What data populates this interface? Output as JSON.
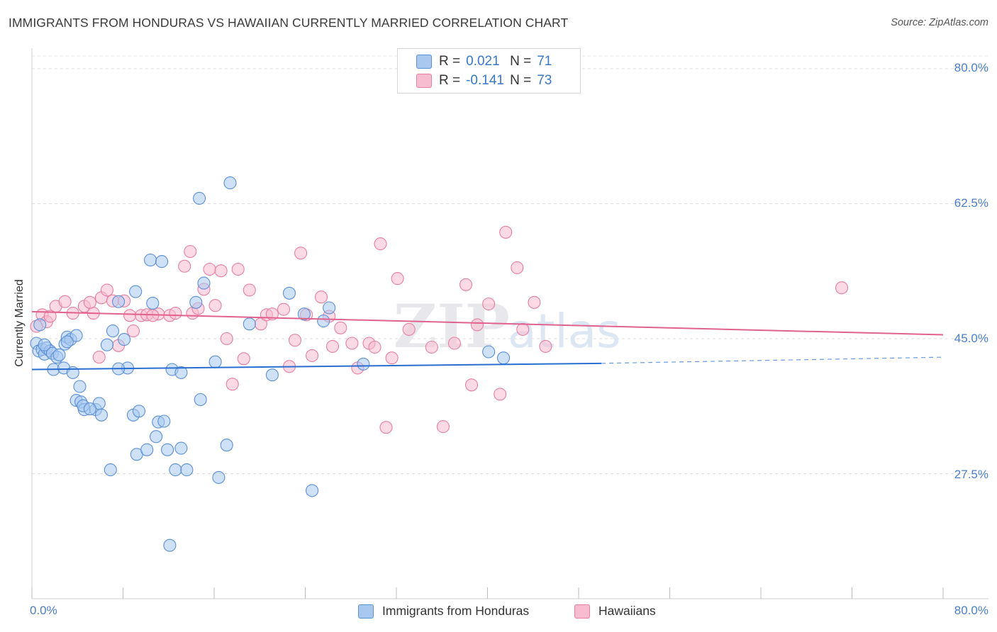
{
  "chart_data": {
    "type": "scatter",
    "title": "IMMIGRANTS FROM HONDURAS VS HAWAIIAN CURRENTLY MARRIED CORRELATION CHART",
    "source": "Source: ZipAtlas.com",
    "ylabel": "Currently Married",
    "xlim": [
      0,
      80
    ],
    "ylim": [
      10,
      82
    ],
    "y_ticks": [
      "80.0%",
      "62.5%",
      "45.0%",
      "27.5%"
    ],
    "y_tick_values": [
      80,
      62.5,
      45,
      27.5
    ],
    "x_tick_labels": [
      "0.0%",
      "80.0%"
    ],
    "watermark": {
      "zip": "ZIP",
      "atlas": "atlas"
    },
    "legend": {
      "r_label": "R =",
      "n_label": "N =",
      "rows": [
        {
          "name": "Immigrants from Honduras",
          "r": "0.021",
          "n": "71"
        },
        {
          "name": "Hawaiians",
          "r": "-0.141",
          "n": "73"
        }
      ]
    },
    "colors": {
      "blue_fill": "#a8c8f0",
      "blue_stroke": "#5b8fd6",
      "blue_line": "#2a6fd0",
      "pink_fill": "#f7bcd0",
      "pink_stroke": "#e67fa2",
      "pink_line": "#e0628d",
      "tick_text": "#4a7fc8"
    },
    "series": [
      {
        "name": "Immigrants from Honduras",
        "trend": {
          "x0": 0,
          "y0": 41.0,
          "x1": 50,
          "y1": 41.8,
          "dash_x1": 80,
          "dash_y1": 42.6
        },
        "points": [
          [
            0.4,
            44.4
          ],
          [
            0.6,
            43.4
          ],
          [
            0.9,
            43.6
          ],
          [
            1.1,
            43.0
          ],
          [
            1.3,
            43.8
          ],
          [
            1.6,
            43.4
          ],
          [
            1.8,
            43.1
          ],
          [
            1.1,
            44.2
          ],
          [
            1.9,
            41.0
          ],
          [
            2.2,
            42.6
          ],
          [
            2.4,
            42.9
          ],
          [
            2.9,
            44.3
          ],
          [
            3.1,
            45.2
          ],
          [
            3.4,
            44.9
          ],
          [
            3.9,
            45.4
          ],
          [
            2.8,
            41.2
          ],
          [
            3.6,
            40.6
          ],
          [
            4.2,
            38.8
          ],
          [
            3.9,
            37.0
          ],
          [
            4.3,
            36.8
          ],
          [
            4.6,
            35.8
          ],
          [
            4.5,
            36.3
          ],
          [
            5.6,
            35.8
          ],
          [
            5.9,
            36.6
          ],
          [
            6.1,
            35.1
          ],
          [
            5.1,
            35.9
          ],
          [
            6.6,
            44.2
          ],
          [
            7.1,
            46.0
          ],
          [
            7.6,
            49.8
          ],
          [
            8.1,
            44.9
          ],
          [
            8.4,
            41.2
          ],
          [
            8.9,
            35.1
          ],
          [
            9.4,
            35.6
          ],
          [
            9.2,
            30.0
          ],
          [
            10.1,
            30.6
          ],
          [
            10.9,
            32.3
          ],
          [
            11.1,
            34.2
          ],
          [
            11.6,
            34.3
          ],
          [
            11.9,
            30.6
          ],
          [
            12.3,
            41.0
          ],
          [
            13.1,
            40.6
          ],
          [
            13.1,
            30.8
          ],
          [
            14.4,
            49.7
          ],
          [
            14.8,
            37.1
          ],
          [
            15.1,
            52.2
          ],
          [
            14.7,
            63.2
          ],
          [
            16.4,
            27.0
          ],
          [
            17.1,
            31.2
          ],
          [
            17.4,
            65.2
          ],
          [
            19.1,
            46.9
          ],
          [
            21.1,
            40.3
          ],
          [
            22.6,
            50.9
          ],
          [
            23.9,
            48.2
          ],
          [
            25.6,
            47.3
          ],
          [
            24.6,
            25.3
          ],
          [
            29.1,
            41.7
          ],
          [
            40.1,
            43.3
          ],
          [
            41.4,
            42.5
          ],
          [
            9.1,
            51.1
          ],
          [
            10.4,
            55.2
          ],
          [
            10.6,
            49.6
          ],
          [
            11.4,
            55.0
          ],
          [
            12.1,
            18.2
          ],
          [
            12.6,
            28.0
          ],
          [
            6.9,
            28.0
          ],
          [
            3.1,
            44.6
          ],
          [
            7.6,
            41.1
          ],
          [
            13.6,
            28.0
          ],
          [
            16.1,
            42.0
          ],
          [
            0.7,
            46.8
          ],
          [
            26.1,
            49.0
          ]
        ]
      },
      {
        "name": "Hawaiians",
        "trend": {
          "x0": 0,
          "y0": 48.5,
          "x1": 80,
          "y1": 45.5
        },
        "points": [
          [
            0.9,
            48.1
          ],
          [
            1.3,
            47.2
          ],
          [
            2.1,
            49.2
          ],
          [
            2.9,
            49.8
          ],
          [
            3.6,
            48.3
          ],
          [
            4.6,
            49.2
          ],
          [
            5.4,
            48.3
          ],
          [
            5.1,
            49.7
          ],
          [
            6.1,
            50.3
          ],
          [
            6.6,
            51.3
          ],
          [
            7.1,
            49.9
          ],
          [
            7.6,
            44.1
          ],
          [
            8.1,
            49.9
          ],
          [
            8.6,
            48.0
          ],
          [
            8.9,
            46.0
          ],
          [
            9.6,
            48.0
          ],
          [
            10.1,
            48.1
          ],
          [
            11.1,
            48.2
          ],
          [
            12.1,
            48.0
          ],
          [
            12.6,
            48.3
          ],
          [
            13.4,
            54.4
          ],
          [
            13.9,
            56.3
          ],
          [
            14.1,
            48.3
          ],
          [
            14.6,
            48.9
          ],
          [
            15.1,
            51.4
          ],
          [
            15.6,
            54.0
          ],
          [
            16.1,
            49.3
          ],
          [
            16.6,
            53.8
          ],
          [
            17.1,
            45.0
          ],
          [
            17.6,
            39.1
          ],
          [
            18.1,
            54.0
          ],
          [
            18.6,
            42.4
          ],
          [
            19.1,
            51.3
          ],
          [
            20.1,
            46.9
          ],
          [
            20.6,
            48.1
          ],
          [
            21.1,
            48.2
          ],
          [
            22.1,
            48.8
          ],
          [
            22.6,
            41.4
          ],
          [
            23.1,
            44.8
          ],
          [
            23.6,
            56.1
          ],
          [
            24.1,
            48.1
          ],
          [
            24.6,
            42.8
          ],
          [
            25.4,
            50.4
          ],
          [
            26.1,
            47.9
          ],
          [
            27.1,
            46.4
          ],
          [
            28.1,
            44.4
          ],
          [
            28.6,
            41.2
          ],
          [
            29.6,
            44.4
          ],
          [
            30.1,
            43.9
          ],
          [
            30.6,
            57.3
          ],
          [
            31.1,
            33.5
          ],
          [
            31.6,
            42.5
          ],
          [
            32.1,
            52.8
          ],
          [
            33.1,
            46.2
          ],
          [
            35.1,
            43.9
          ],
          [
            36.1,
            33.6
          ],
          [
            37.1,
            44.4
          ],
          [
            38.1,
            52.0
          ],
          [
            38.6,
            39.0
          ],
          [
            39.1,
            46.8
          ],
          [
            40.1,
            49.5
          ],
          [
            41.1,
            37.8
          ],
          [
            41.6,
            58.8
          ],
          [
            42.6,
            54.2
          ],
          [
            43.1,
            46.2
          ],
          [
            44.1,
            49.7
          ],
          [
            45.1,
            44.0
          ],
          [
            71.1,
            51.6
          ],
          [
            1.6,
            47.9
          ],
          [
            5.9,
            42.6
          ],
          [
            10.6,
            48.0
          ],
          [
            26.4,
            44.0
          ],
          [
            0.4,
            46.6
          ]
        ]
      }
    ]
  }
}
